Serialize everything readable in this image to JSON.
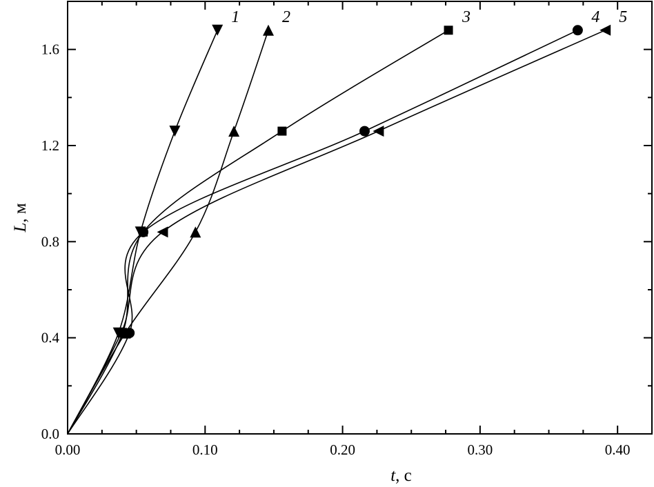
{
  "chart_data": {
    "type": "line",
    "xlabel": "t, c",
    "xlabel_parts": {
      "var": "t",
      "unit": ", c"
    },
    "ylabel": "L, м",
    "ylabel_parts": {
      "var": "L",
      "unit": ", м"
    },
    "xlim": [
      0.0,
      0.425
    ],
    "ylim": [
      0.0,
      1.8
    ],
    "x_ticks": [
      0.0,
      0.1,
      0.2,
      0.3,
      0.4
    ],
    "x_tick_labels": [
      "0.00",
      "0.10",
      "0.20",
      "0.30",
      "0.40"
    ],
    "x_minor_step": 0.025,
    "y_ticks": [
      0.0,
      0.4,
      0.8,
      1.2,
      1.6
    ],
    "y_tick_labels": [
      "0.0",
      "0.4",
      "0.8",
      "1.2",
      "1.6"
    ],
    "y_minor_step": 0.2,
    "grid": false,
    "legend": "none",
    "series": [
      {
        "label": "1",
        "marker": "triangle-down",
        "points": [
          [
            0.0,
            0.0
          ],
          [
            0.037,
            0.42
          ],
          [
            0.053,
            0.84
          ],
          [
            0.078,
            1.26
          ],
          [
            0.109,
            1.68
          ]
        ]
      },
      {
        "label": "2",
        "marker": "triangle-up",
        "points": [
          [
            0.0,
            0.0
          ],
          [
            0.042,
            0.42
          ],
          [
            0.093,
            0.84
          ],
          [
            0.121,
            1.26
          ],
          [
            0.146,
            1.68
          ]
        ]
      },
      {
        "label": "3",
        "marker": "square",
        "points": [
          [
            0.0,
            0.0
          ],
          [
            0.04,
            0.42
          ],
          [
            0.055,
            0.84
          ],
          [
            0.156,
            1.26
          ],
          [
            0.277,
            1.68
          ]
        ]
      },
      {
        "label": "4",
        "marker": "circle",
        "points": [
          [
            0.0,
            0.0
          ],
          [
            0.045,
            0.42
          ],
          [
            0.055,
            0.84
          ],
          [
            0.216,
            1.26
          ],
          [
            0.371,
            1.68
          ]
        ]
      },
      {
        "label": "5",
        "marker": "triangle-left",
        "points": [
          [
            0.0,
            0.0
          ],
          [
            0.039,
            0.42
          ],
          [
            0.069,
            0.84
          ],
          [
            0.226,
            1.26
          ],
          [
            0.391,
            1.68
          ]
        ]
      }
    ]
  }
}
